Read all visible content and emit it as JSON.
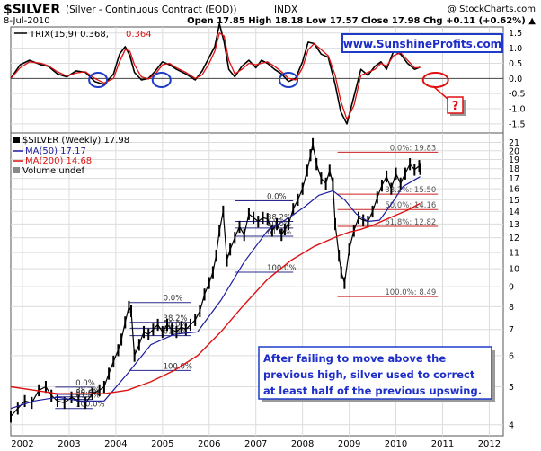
{
  "header": {
    "symbol": "$SILVER",
    "name": "(Silver - Continuous Contract (EOD))",
    "exchange": "INDX",
    "date": "8-Jul-2010",
    "quote": "Open 17.85 High 18.18 Low 17.57 Close 17.98 Chg +0.11 (+0.62%) ▲",
    "copyright": "@ StockCharts.com"
  },
  "colors": {
    "price": "#000000",
    "ma50": "#1c1c9c",
    "ma200": "#dd1111",
    "trix": "#000000",
    "trix_signal": "#dd1111",
    "fib_blue": "#2a2a8c",
    "fib_red": "#cc2222",
    "circle_blue": "#1e3cc8",
    "circle_red": "#e01010",
    "grid": "#dcdcdc"
  },
  "chart_data": [
    {
      "type": "line",
      "panel": "trix",
      "title": "TRIX(15,9) 0.368, 0.364",
      "legend": [
        "TRIX(15,9) 0.368,",
        "0.364"
      ],
      "ylim": [
        -1.8,
        1.7
      ],
      "yticks": [
        "1.5",
        "1.0",
        "0.5",
        "0.0",
        "-0.5",
        "-1.0",
        "-1.5"
      ],
      "ytick_values": [
        1.5,
        1.0,
        0.5,
        0.0,
        -0.5,
        -1.0,
        -1.5
      ],
      "xlim": [
        2001.75,
        2012.3
      ],
      "series": [
        {
          "role": "trix",
          "x": [
            2001.75,
            2001.95,
            2002.15,
            2002.4,
            2002.55,
            2002.75,
            2002.95,
            2003.15,
            2003.35,
            2003.55,
            2003.75,
            2003.95,
            2004.08,
            2004.2,
            2004.3,
            2004.4,
            2004.55,
            2004.7,
            2004.85,
            2005.0,
            2005.15,
            2005.3,
            2005.5,
            2005.7,
            2005.85,
            2006.0,
            2006.12,
            2006.22,
            2006.32,
            2006.42,
            2006.55,
            2006.7,
            2006.85,
            2007.0,
            2007.12,
            2007.25,
            2007.4,
            2007.55,
            2007.7,
            2007.85,
            2008.0,
            2008.12,
            2008.25,
            2008.4,
            2008.55,
            2008.7,
            2008.82,
            2008.95,
            2009.1,
            2009.25,
            2009.4,
            2009.55,
            2009.68,
            2009.8,
            2009.95,
            2010.1,
            2010.25,
            2010.4,
            2010.52
          ],
          "values": [
            0.0,
            0.45,
            0.6,
            0.45,
            0.4,
            0.15,
            0.05,
            0.25,
            0.2,
            -0.1,
            -0.2,
            0.15,
            0.8,
            1.05,
            0.75,
            0.2,
            -0.05,
            0.0,
            0.25,
            0.55,
            0.45,
            0.3,
            0.15,
            -0.05,
            0.25,
            0.7,
            1.05,
            1.8,
            1.2,
            0.3,
            0.05,
            0.4,
            0.6,
            0.35,
            0.6,
            0.5,
            0.3,
            0.15,
            -0.1,
            0.0,
            0.55,
            1.2,
            1.15,
            0.8,
            0.7,
            -0.2,
            -1.1,
            -1.5,
            -0.6,
            0.3,
            0.1,
            0.4,
            0.55,
            0.3,
            0.9,
            0.8,
            0.5,
            0.3,
            0.37
          ]
        },
        {
          "role": "signal",
          "x": [
            2001.75,
            2001.95,
            2002.15,
            2002.4,
            2002.55,
            2002.75,
            2002.95,
            2003.15,
            2003.35,
            2003.55,
            2003.75,
            2003.95,
            2004.08,
            2004.2,
            2004.3,
            2004.4,
            2004.55,
            2004.7,
            2004.85,
            2005.0,
            2005.15,
            2005.3,
            2005.5,
            2005.7,
            2005.85,
            2006.0,
            2006.12,
            2006.22,
            2006.32,
            2006.42,
            2006.55,
            2006.7,
            2006.85,
            2007.0,
            2007.12,
            2007.25,
            2007.4,
            2007.55,
            2007.7,
            2007.85,
            2008.0,
            2008.12,
            2008.25,
            2008.4,
            2008.55,
            2008.7,
            2008.82,
            2008.95,
            2009.1,
            2009.25,
            2009.4,
            2009.55,
            2009.68,
            2009.8,
            2009.95,
            2010.1,
            2010.25,
            2010.4,
            2010.52
          ],
          "values": [
            0.0,
            0.35,
            0.55,
            0.5,
            0.42,
            0.22,
            0.08,
            0.18,
            0.22,
            0.0,
            -0.15,
            0.0,
            0.55,
            0.95,
            0.9,
            0.45,
            0.05,
            -0.02,
            0.15,
            0.45,
            0.5,
            0.35,
            0.2,
            0.0,
            0.12,
            0.5,
            0.9,
            1.5,
            1.4,
            0.6,
            0.15,
            0.3,
            0.5,
            0.45,
            0.5,
            0.55,
            0.4,
            0.22,
            0.0,
            -0.05,
            0.35,
            0.95,
            1.15,
            0.95,
            0.75,
            0.1,
            -0.75,
            -1.35,
            -0.9,
            0.1,
            0.2,
            0.3,
            0.5,
            0.4,
            0.75,
            0.85,
            0.6,
            0.35,
            0.36
          ]
        }
      ]
    },
    {
      "type": "line",
      "panel": "price",
      "title": "$SILVER (Weekly) 17.98",
      "legend": [
        "$SILVER (Weekly) 17.98",
        "MA(50) 17.17",
        "MA(200) 14.68",
        "Volume undef"
      ],
      "y_scale": "log",
      "ylim": [
        3.75,
        22.2
      ],
      "yticks": [
        "21",
        "20",
        "19",
        "18",
        "17",
        "16",
        "15",
        "14",
        "13",
        "12",
        "11",
        "10",
        "9",
        "8",
        "7",
        "6",
        "5",
        "4"
      ],
      "ytick_values": [
        21,
        20,
        19,
        18,
        17,
        16,
        15,
        14,
        13,
        12,
        11,
        10,
        9,
        8,
        7,
        6,
        5,
        4
      ],
      "xlim": [
        2001.75,
        2012.3
      ],
      "xticks": [
        "2002",
        "2003",
        "2004",
        "2005",
        "2006",
        "2007",
        "2008",
        "2009",
        "2010",
        "2011",
        "2012"
      ],
      "xtick_values": [
        2002,
        2003,
        2004,
        2005,
        2006,
        2007,
        2008,
        2009,
        2010,
        2011,
        2012
      ],
      "series": [
        {
          "name": "$SILVER (Weekly)",
          "x": [
            2001.75,
            2001.9,
            2002.05,
            2002.2,
            2002.35,
            2002.5,
            2002.62,
            2002.75,
            2002.9,
            2003.05,
            2003.2,
            2003.35,
            2003.5,
            2003.65,
            2003.75,
            2003.85,
            2003.95,
            2004.05,
            2004.12,
            2004.2,
            2004.28,
            2004.33,
            2004.4,
            2004.5,
            2004.6,
            2004.7,
            2004.8,
            2004.9,
            2005.0,
            2005.1,
            2005.2,
            2005.3,
            2005.4,
            2005.5,
            2005.6,
            2005.7,
            2005.8,
            2005.9,
            2006.0,
            2006.08,
            2006.15,
            2006.22,
            2006.3,
            2006.38,
            2006.45,
            2006.55,
            2006.65,
            2006.75,
            2006.85,
            2006.95,
            2007.05,
            2007.15,
            2007.25,
            2007.35,
            2007.45,
            2007.55,
            2007.62,
            2007.7,
            2007.8,
            2007.9,
            2008.0,
            2008.1,
            2008.17,
            2008.22,
            2008.3,
            2008.4,
            2008.5,
            2008.58,
            2008.65,
            2008.7,
            2008.78,
            2008.83,
            2008.9,
            2009.0,
            2009.1,
            2009.2,
            2009.3,
            2009.4,
            2009.5,
            2009.6,
            2009.7,
            2009.8,
            2009.9,
            2010.0,
            2010.1,
            2010.2,
            2010.3,
            2010.4,
            2010.5,
            2010.52
          ],
          "values": [
            4.2,
            4.4,
            4.6,
            4.55,
            4.9,
            5.0,
            4.75,
            4.6,
            4.55,
            4.7,
            4.6,
            4.55,
            4.8,
            4.9,
            5.0,
            5.4,
            5.8,
            6.2,
            6.6,
            7.3,
            8.0,
            7.8,
            6.0,
            6.4,
            6.9,
            6.8,
            7.0,
            7.2,
            6.9,
            7.2,
            7.0,
            6.9,
            7.1,
            7.0,
            7.2,
            7.4,
            7.8,
            8.6,
            9.2,
            9.8,
            10.8,
            12.5,
            14.0,
            10.5,
            11.2,
            12.0,
            12.8,
            12.2,
            13.8,
            13.5,
            13.2,
            13.5,
            13.4,
            12.5,
            13.0,
            12.2,
            12.6,
            13.0,
            14.2,
            15.0,
            16.0,
            17.8,
            19.5,
            20.8,
            18.5,
            17.0,
            16.5,
            17.8,
            16.5,
            13.0,
            10.8,
            9.8,
            9.2,
            11.2,
            12.5,
            13.5,
            13.3,
            13.2,
            14.0,
            15.2,
            16.3,
            17.2,
            16.0,
            17.5,
            16.5,
            17.5,
            18.5,
            17.9,
            18.3,
            17.98
          ]
        },
        {
          "name": "MA(50)",
          "x": [
            2001.75,
            2002.25,
            2002.75,
            2003.25,
            2003.75,
            2004.25,
            2004.75,
            2005.25,
            2005.75,
            2006.25,
            2006.75,
            2007.25,
            2007.75,
            2008.05,
            2008.35,
            2008.65,
            2008.9,
            2009.15,
            2009.4,
            2009.65,
            2009.9,
            2010.15,
            2010.52
          ],
          "values": [
            4.4,
            4.6,
            4.7,
            4.6,
            4.6,
            5.4,
            6.4,
            6.8,
            6.9,
            8.3,
            10.4,
            12.5,
            13.6,
            14.4,
            15.4,
            15.8,
            15.0,
            13.8,
            13.2,
            13.3,
            14.6,
            16.2,
            17.17
          ]
        },
        {
          "name": "MA(200)",
          "x": [
            2001.75,
            2002.25,
            2002.75,
            2003.25,
            2003.75,
            2004.25,
            2004.75,
            2005.25,
            2005.75,
            2006.25,
            2006.75,
            2007.25,
            2007.75,
            2008.25,
            2008.75,
            2009.0,
            2009.25,
            2009.5,
            2009.75,
            2010.0,
            2010.25,
            2010.52
          ],
          "values": [
            5.0,
            4.9,
            4.8,
            4.8,
            4.8,
            4.9,
            5.15,
            5.5,
            6.0,
            6.9,
            8.1,
            9.4,
            10.5,
            11.4,
            12.1,
            12.4,
            12.6,
            12.9,
            13.3,
            13.7,
            14.1,
            14.68
          ]
        }
      ],
      "fibonacci_sets": [
        {
          "color": "blue",
          "x_start": 2002.7,
          "x_end": 2003.5,
          "levels": [
            {
              "price": 4.99,
              "label": "0.0%"
            },
            {
              "price": 4.78,
              "label": "38.2%"
            },
            {
              "price": 4.71,
              "label": "50.0%"
            },
            {
              "price": 4.64,
              "label": "61.8%"
            },
            {
              "price": 4.4,
              "label": "100.0%"
            }
          ]
        },
        {
          "color": "blue",
          "x_start": 2004.3,
          "x_end": 2005.6,
          "levels": [
            {
              "price": 8.2,
              "label": "0.0%"
            },
            {
              "price": 7.3,
              "label": "38.2%"
            },
            {
              "price": 7.05,
              "label": "50.0%"
            },
            {
              "price": 6.75,
              "label": "61.8%"
            },
            {
              "price": 5.5,
              "label": "100.0%"
            }
          ]
        },
        {
          "color": "blue",
          "x_start": 2006.55,
          "x_end": 2007.8,
          "levels": [
            {
              "price": 14.9,
              "label": "0.0%"
            },
            {
              "price": 13.2,
              "label": "38.2%"
            },
            {
              "price": 12.7,
              "label": "50.0%"
            },
            {
              "price": 12.1,
              "label": "61.8%"
            },
            {
              "price": 9.8,
              "label": "100.0%"
            }
          ]
        },
        {
          "color": "red",
          "x_start": 2008.75,
          "x_end": 2010.9,
          "levels": [
            {
              "price": 19.83,
              "label": "0.0%: 19.83"
            },
            {
              "price": 15.5,
              "label": "38.2%: 15.50"
            },
            {
              "price": 14.16,
              "label": "50.0%: 14.16"
            },
            {
              "price": 12.82,
              "label": "61.8%: 12.82"
            },
            {
              "price": 8.49,
              "label": "100.0%: 8.49"
            }
          ]
        }
      ]
    }
  ],
  "annotations": {
    "website": "www.SunshineProfits.com",
    "question_mark": "?",
    "callout": [
      "After failing to move above the",
      "previous high, silver used to correct",
      "at least half of the previous upswing."
    ],
    "blue_circles_at": [
      2003.62,
      2004.98,
      2007.7
    ],
    "red_circle_at": 2010.85
  }
}
